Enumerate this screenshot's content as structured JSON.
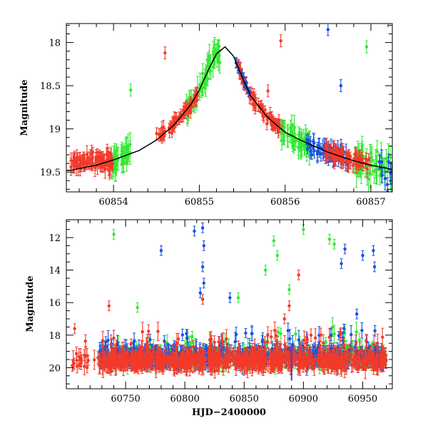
{
  "chart_data": [
    {
      "type": "scatter",
      "panel": "top",
      "title": "",
      "xlabel": "",
      "ylabel": "Magnitude",
      "xlim": [
        60853.45,
        60857.25
      ],
      "ylim": [
        19.73,
        17.78
      ],
      "y_inverted": true,
      "xticks": [
        60854,
        60855,
        60856,
        60857
      ],
      "xtick_labels": [
        "60854",
        "60855",
        "60856",
        "60857"
      ],
      "yticks": [
        18,
        18.5,
        19,
        19.5
      ],
      "ytick_labels": [
        "18",
        "18.5",
        "19",
        "19.5"
      ],
      "model_curve": {
        "name": "model",
        "color": "#000000",
        "x": [
          60853.5,
          60853.8,
          60854.0,
          60854.3,
          60854.5,
          60854.7,
          60854.9,
          60855.0,
          60855.1,
          60855.2,
          60855.3,
          60855.4,
          60855.5,
          60855.6,
          60855.8,
          60856.0,
          60856.2,
          60856.5,
          60856.8,
          60857.0,
          60857.25
        ],
        "y": [
          19.48,
          19.42,
          19.36,
          19.25,
          19.13,
          18.96,
          18.72,
          18.55,
          18.33,
          18.13,
          18.05,
          18.16,
          18.4,
          18.62,
          18.87,
          19.04,
          19.14,
          19.27,
          19.37,
          19.42,
          19.47
        ]
      },
      "series": [
        {
          "name": "red",
          "color": "#f23a2a",
          "x_range": [
            60853.5,
            60857.0
          ],
          "note": "dense photometry, segments near 60853.5-60854.0, 60854.5-60855.0, 60855.5-60856.0, 60856.5-60857.0"
        },
        {
          "name": "green",
          "color": "#35e835",
          "x_range": [
            60853.9,
            60857.25
          ]
        },
        {
          "name": "blue",
          "color": "#1552e0",
          "x_range": [
            60855.4,
            60857.25
          ]
        }
      ]
    },
    {
      "type": "scatter",
      "panel": "bottom",
      "title": "",
      "xlabel": "HJD−2400000",
      "ylabel": "Magnitude",
      "xlim": [
        60700,
        60975
      ],
      "ylim": [
        21.3,
        10.9
      ],
      "y_inverted": true,
      "xticks": [
        60750,
        60800,
        60850,
        60900,
        60950
      ],
      "xtick_labels": [
        "60750",
        "60800",
        "60850",
        "60900",
        "60950"
      ],
      "yticks": [
        12,
        14,
        16,
        18,
        20
      ],
      "ytick_labels": [
        "12",
        "14",
        "16",
        "18",
        "20"
      ],
      "series": [
        {
          "name": "red",
          "color": "#f23a2a",
          "x_range": [
            60705,
            60970
          ],
          "baseline_mag": 19.6
        },
        {
          "name": "green",
          "color": "#35e835",
          "x_range": [
            60728,
            60970
          ],
          "baseline_mag": 19.4
        },
        {
          "name": "blue",
          "color": "#1552e0",
          "x_range": [
            60728,
            60970
          ],
          "baseline_mag": 19.3
        }
      ],
      "outliers": {
        "green": [
          [
            60740,
            11.8
          ],
          [
            60875,
            12.2
          ],
          [
            60900,
            11.5
          ],
          [
            60922,
            12.1
          ],
          [
            60926,
            12.4
          ],
          [
            60878,
            13.1
          ],
          [
            60868,
            14.0
          ],
          [
            60845,
            15.7
          ],
          [
            60760,
            16.3
          ],
          [
            60815,
            15.8
          ],
          [
            60888,
            15.2
          ]
        ],
        "blue": [
          [
            60808,
            11.6
          ],
          [
            60780,
            12.8
          ],
          [
            60815,
            11.4
          ],
          [
            60816,
            12.5
          ],
          [
            60815,
            13.8
          ],
          [
            60838,
            15.7
          ],
          [
            60935,
            12.7
          ],
          [
            60932,
            13.6
          ],
          [
            60950,
            13.1
          ],
          [
            60959,
            12.8
          ],
          [
            60960,
            13.8
          ],
          [
            60816,
            14.8
          ],
          [
            60813,
            15.4
          ],
          [
            60945,
            16.7
          ]
        ],
        "red": [
          [
            60736,
            16.2
          ],
          [
            60707,
            17.6
          ],
          [
            60815,
            15.8
          ],
          [
            60896,
            14.3
          ],
          [
            60888,
            16.2
          ],
          [
            60884,
            17.0
          ]
        ]
      }
    }
  ]
}
